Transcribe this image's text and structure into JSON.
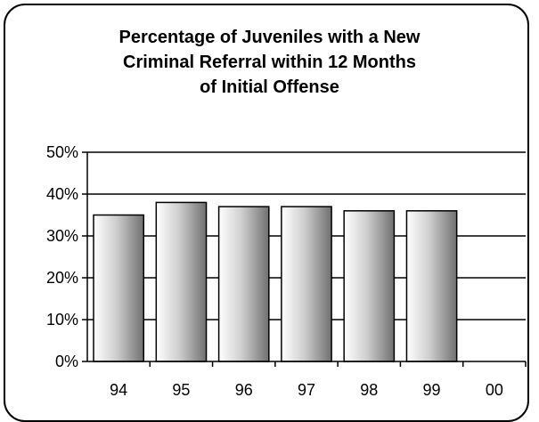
{
  "chart_data": {
    "type": "bar",
    "title_lines": [
      "Percentage of Juveniles with a New",
      "Criminal Referral within 12 Months",
      "of Initial Offense"
    ],
    "categories": [
      "94",
      "95",
      "96",
      "97",
      "98",
      "99",
      "00"
    ],
    "values": [
      35,
      38,
      37,
      37,
      36,
      36,
      null
    ],
    "ylim": [
      0,
      50
    ],
    "yticks": [
      0,
      10,
      20,
      30,
      40,
      50
    ],
    "ytick_labels": [
      "0%",
      "10%",
      "20%",
      "30%",
      "40%",
      "50%"
    ],
    "grid": true,
    "legend": "none",
    "colors": {
      "bar_light": "#ffffff",
      "bar_mid": "#cfcfcf",
      "bar_dark": "#707070",
      "stroke": "#000000"
    }
  }
}
